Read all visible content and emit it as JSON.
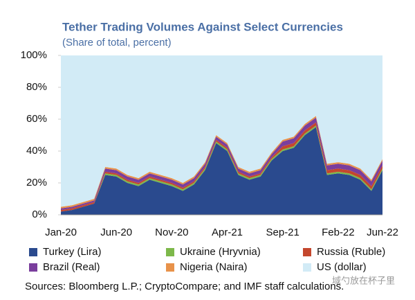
{
  "chart_data": {
    "type": "stacked_area",
    "title": "Tether Trading Volumes Against Select Currencies",
    "subtitle": "(Share of total, percent)",
    "categories": [
      "Jan-20",
      null,
      null,
      null,
      null,
      "Jun-20",
      null,
      null,
      null,
      null,
      "Nov-20",
      null,
      null,
      null,
      null,
      "Apr-21",
      null,
      null,
      null,
      null,
      "Sep-21",
      null,
      null,
      null,
      null,
      "Feb-22",
      null,
      null,
      null,
      "Jun-22"
    ],
    "series": [
      {
        "name": "Turkey (Lira)",
        "color": "#2a4a8e",
        "values": [
          2,
          3,
          5,
          7,
          25,
          24,
          20,
          18,
          22,
          20,
          18,
          15,
          19,
          28,
          45,
          40,
          25,
          22,
          24,
          34,
          40,
          42,
          50,
          55,
          25,
          26,
          25,
          22,
          15,
          28
        ]
      },
      {
        "name": "Ukraine (Hryvnia)",
        "color": "#7db84a",
        "values": [
          0,
          0,
          0,
          0,
          1,
          1,
          1,
          1,
          1,
          1,
          1,
          1,
          1,
          1,
          1,
          1,
          1,
          1,
          1,
          1,
          1,
          1,
          1,
          1,
          1,
          1,
          1,
          1,
          1,
          1
        ]
      },
      {
        "name": "Russia (Ruble)",
        "color": "#c4472d",
        "values": [
          1,
          1,
          1,
          1,
          1,
          1,
          1,
          1,
          1,
          1,
          1,
          1,
          1,
          1,
          1,
          1,
          1,
          1,
          1,
          1,
          2,
          2,
          2,
          2,
          2,
          2,
          2,
          2,
          2,
          2
        ]
      },
      {
        "name": "Brazil (Real)",
        "color": "#7a3e9d",
        "values": [
          1,
          1,
          1,
          1,
          2,
          2,
          2,
          2,
          2,
          2,
          2,
          2,
          2,
          2,
          2,
          2,
          2,
          2,
          2,
          2,
          3,
          3,
          3,
          3,
          3,
          3,
          3,
          3,
          3,
          3
        ]
      },
      {
        "name": "Nigeria (Naira)",
        "color": "#e8924a",
        "values": [
          1,
          1,
          1,
          1,
          1,
          1,
          1,
          1,
          1,
          1,
          1,
          1,
          1,
          1,
          1,
          1,
          1,
          1,
          1,
          1,
          1,
          1,
          1,
          1,
          1,
          1,
          1,
          1,
          1,
          1
        ]
      },
      {
        "name": "US (dollar)",
        "color": "#d2ebf6",
        "values": [
          95,
          94,
          92,
          90,
          70,
          71,
          75,
          77,
          73,
          75,
          77,
          80,
          76,
          67,
          50,
          55,
          70,
          73,
          71,
          61,
          53,
          51,
          43,
          38,
          68,
          67,
          68,
          71,
          78,
          65
        ]
      }
    ],
    "ylim": [
      0,
      100
    ],
    "yticks": [
      {
        "value": 0,
        "label": "0%"
      },
      {
        "value": 20,
        "label": "20%"
      },
      {
        "value": 40,
        "label": "40%"
      },
      {
        "value": 60,
        "label": "60%"
      },
      {
        "value": 80,
        "label": "80%"
      },
      {
        "value": 100,
        "label": "100%"
      }
    ],
    "source": "Sources: Bloomberg L.P.; CryptoCompare; and IMF staff calculations.",
    "watermark": "域勺放在杯子里"
  }
}
